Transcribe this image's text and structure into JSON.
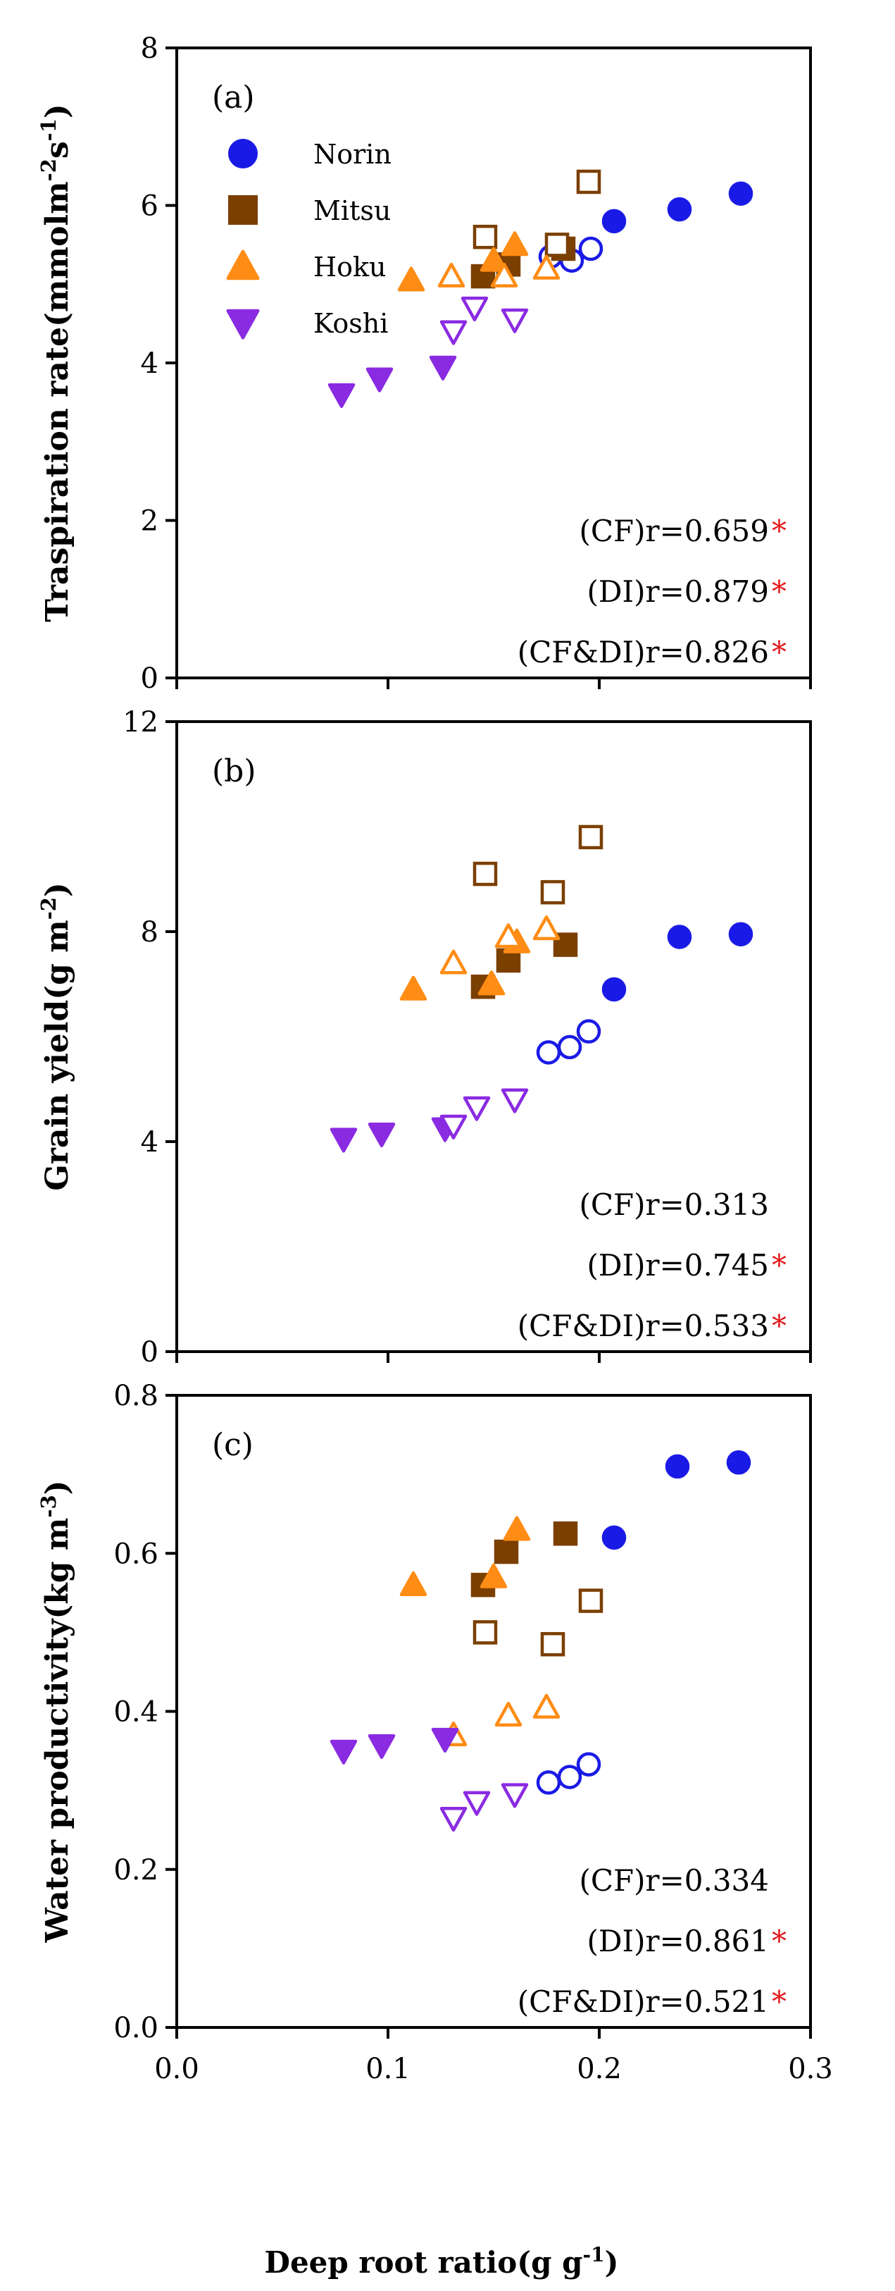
{
  "figure": {
    "xlabel": "Deep root ratio(g g",
    "xlabel_sup": "-1",
    "xlabel_end": ")",
    "xticks": [
      "0.0",
      "0.1",
      "0.2",
      "0.3"
    ]
  },
  "legend": {
    "items": [
      {
        "name": "Norin",
        "marker": "circle",
        "color": "#1a1ae6"
      },
      {
        "name": "Mitsu",
        "marker": "square",
        "color": "#7b3f00"
      },
      {
        "name": "Hoku",
        "marker": "triangle-up",
        "color": "#ff8c14"
      },
      {
        "name": "Koshi",
        "marker": "triangle-down",
        "color": "#8a2be2"
      }
    ]
  },
  "chart_data": [
    {
      "type": "scatter",
      "panel_label": "(a)",
      "ylabel_parts": [
        "Traspiration rate(mmolm",
        "-2",
        "s",
        "-1",
        ")"
      ],
      "xlim": [
        0,
        0.3
      ],
      "ylim": [
        0,
        8
      ],
      "yticks": [
        "0",
        "2",
        "4",
        "6",
        "8"
      ],
      "ytick_values": [
        0,
        2,
        4,
        6,
        8
      ],
      "stats": [
        {
          "text": "(CF)r=0.659",
          "star": "*"
        },
        {
          "text": "(DI)r=0.879",
          "star": "*"
        },
        {
          "text": "(CF&DI)r=0.826",
          "star": "*"
        }
      ],
      "series": [
        {
          "name": "Norin",
          "treatment": "DI",
          "filled": true,
          "x": [
            0.207,
            0.238,
            0.267
          ],
          "y": [
            5.8,
            5.95,
            6.15
          ]
        },
        {
          "name": "Norin",
          "treatment": "CF",
          "filled": false,
          "x": [
            0.177,
            0.187,
            0.196
          ],
          "y": [
            5.35,
            5.3,
            5.45
          ]
        },
        {
          "name": "Mitsu",
          "treatment": "DI",
          "filled": true,
          "x": [
            0.145,
            0.157,
            0.183
          ],
          "y": [
            5.1,
            5.25,
            5.45
          ]
        },
        {
          "name": "Mitsu",
          "treatment": "CF",
          "filled": false,
          "x": [
            0.146,
            0.18,
            0.195
          ],
          "y": [
            5.6,
            5.5,
            6.3
          ]
        },
        {
          "name": "Hoku",
          "treatment": "DI",
          "filled": true,
          "x": [
            0.111,
            0.15,
            0.16
          ],
          "y": [
            5.05,
            5.3,
            5.5
          ]
        },
        {
          "name": "Hoku",
          "treatment": "CF",
          "filled": false,
          "x": [
            0.13,
            0.155,
            0.175
          ],
          "y": [
            5.1,
            5.1,
            5.2
          ]
        },
        {
          "name": "Koshi",
          "treatment": "DI",
          "filled": true,
          "x": [
            0.078,
            0.096,
            0.126
          ],
          "y": [
            3.6,
            3.8,
            3.95
          ]
        },
        {
          "name": "Koshi",
          "treatment": "CF",
          "filled": false,
          "x": [
            0.131,
            0.141,
            0.16
          ],
          "y": [
            4.4,
            4.7,
            4.55
          ]
        }
      ]
    },
    {
      "type": "scatter",
      "panel_label": "(b)",
      "ylabel_parts": [
        "Grain yield(g m",
        "-2",
        ")"
      ],
      "xlim": [
        0,
        0.3
      ],
      "ylim": [
        0,
        12
      ],
      "yticks": [
        "0",
        "4",
        "8",
        "12"
      ],
      "ytick_values": [
        0,
        4,
        8,
        12
      ],
      "stats": [
        {
          "text": "(CF)r=0.313",
          "star": ""
        },
        {
          "text": "(DI)r=0.745",
          "star": "*"
        },
        {
          "text": "(CF&DI)r=0.533",
          "star": "*"
        }
      ],
      "series": [
        {
          "name": "Norin",
          "treatment": "DI",
          "filled": true,
          "x": [
            0.207,
            0.238,
            0.267
          ],
          "y": [
            6.9,
            7.9,
            7.95
          ]
        },
        {
          "name": "Norin",
          "treatment": "CF",
          "filled": false,
          "x": [
            0.176,
            0.186,
            0.195
          ],
          "y": [
            5.7,
            5.8,
            6.1
          ]
        },
        {
          "name": "Mitsu",
          "treatment": "DI",
          "filled": true,
          "x": [
            0.145,
            0.157,
            0.184
          ],
          "y": [
            6.95,
            7.45,
            7.75
          ]
        },
        {
          "name": "Mitsu",
          "treatment": "CF",
          "filled": false,
          "x": [
            0.146,
            0.178,
            0.196
          ],
          "y": [
            9.1,
            8.75,
            9.8
          ]
        },
        {
          "name": "Hoku",
          "treatment": "DI",
          "filled": true,
          "x": [
            0.112,
            0.149,
            0.161
          ],
          "y": [
            6.9,
            7.0,
            7.8
          ]
        },
        {
          "name": "Hoku",
          "treatment": "CF",
          "filled": false,
          "x": [
            0.131,
            0.157,
            0.175
          ],
          "y": [
            7.4,
            7.9,
            8.05
          ]
        },
        {
          "name": "Koshi",
          "treatment": "DI",
          "filled": true,
          "x": [
            0.079,
            0.097,
            0.127
          ],
          "y": [
            4.05,
            4.15,
            4.25
          ]
        },
        {
          "name": "Koshi",
          "treatment": "CF",
          "filled": false,
          "x": [
            0.131,
            0.142,
            0.16
          ],
          "y": [
            4.3,
            4.65,
            4.8
          ]
        }
      ]
    },
    {
      "type": "scatter",
      "panel_label": "(c)",
      "ylabel_parts": [
        "Water productivity(kg m",
        "-3",
        ")"
      ],
      "xlim": [
        0,
        0.3
      ],
      "ylim": [
        0,
        0.8
      ],
      "yticks": [
        "0.0",
        "0.2",
        "0.4",
        "0.6",
        "0.8"
      ],
      "ytick_values": [
        0,
        0.2,
        0.4,
        0.6,
        0.8
      ],
      "stats": [
        {
          "text": "(CF)r=0.334",
          "star": ""
        },
        {
          "text": "(DI)r=0.861",
          "star": "*"
        },
        {
          "text": "(CF&DI)r=0.521",
          "star": "*"
        }
      ],
      "series": [
        {
          "name": "Norin",
          "treatment": "DI",
          "filled": true,
          "x": [
            0.207,
            0.237,
            0.266
          ],
          "y": [
            0.62,
            0.71,
            0.715
          ]
        },
        {
          "name": "Norin",
          "treatment": "CF",
          "filled": false,
          "x": [
            0.176,
            0.186,
            0.195
          ],
          "y": [
            0.31,
            0.317,
            0.333
          ]
        },
        {
          "name": "Mitsu",
          "treatment": "DI",
          "filled": true,
          "x": [
            0.145,
            0.156,
            0.184
          ],
          "y": [
            0.56,
            0.602,
            0.625
          ]
        },
        {
          "name": "Mitsu",
          "treatment": "CF",
          "filled": false,
          "x": [
            0.146,
            0.178,
            0.196
          ],
          "y": [
            0.5,
            0.485,
            0.54
          ]
        },
        {
          "name": "Hoku",
          "treatment": "DI",
          "filled": true,
          "x": [
            0.112,
            0.15,
            0.161
          ],
          "y": [
            0.56,
            0.57,
            0.63
          ]
        },
        {
          "name": "Hoku",
          "treatment": "CF",
          "filled": false,
          "x": [
            0.131,
            0.157,
            0.175
          ],
          "y": [
            0.37,
            0.395,
            0.405
          ]
        },
        {
          "name": "Koshi",
          "treatment": "DI",
          "filled": true,
          "x": [
            0.079,
            0.097,
            0.127
          ],
          "y": [
            0.35,
            0.357,
            0.365
          ]
        },
        {
          "name": "Koshi",
          "treatment": "CF",
          "filled": false,
          "x": [
            0.131,
            0.142,
            0.16
          ],
          "y": [
            0.265,
            0.285,
            0.295
          ]
        }
      ]
    }
  ]
}
